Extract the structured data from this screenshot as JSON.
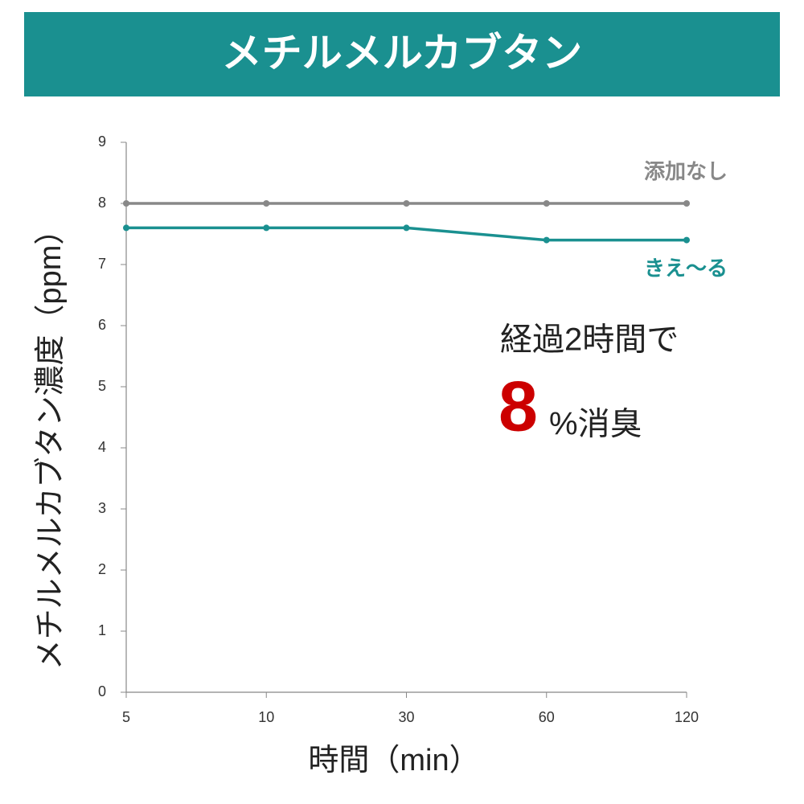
{
  "chart_data": {
    "type": "line",
    "title": "メチルメルカブタン",
    "y_label": "メチルメルカブタン濃度（ppm）",
    "x_label": "時間（min）",
    "categories": [
      "5",
      "10",
      "30",
      "60",
      "120"
    ],
    "series": [
      {
        "name": "添加なし",
        "color": "#888888",
        "values": [
          8,
          8,
          8,
          8,
          8
        ]
      },
      {
        "name": "きえ〜る",
        "color": "#1a9090",
        "values": [
          7.6,
          7.6,
          7.6,
          7.4,
          7.4
        ]
      }
    ],
    "ylim": [
      0,
      9
    ],
    "yticks": [
      0,
      1,
      2,
      3,
      4,
      5,
      6,
      7,
      8,
      9
    ],
    "grid": false,
    "annotations": [
      "経過2時間で",
      "8",
      "%消臭"
    ],
    "header_color": "#1a9090",
    "highlight_color": "#cc0000"
  }
}
